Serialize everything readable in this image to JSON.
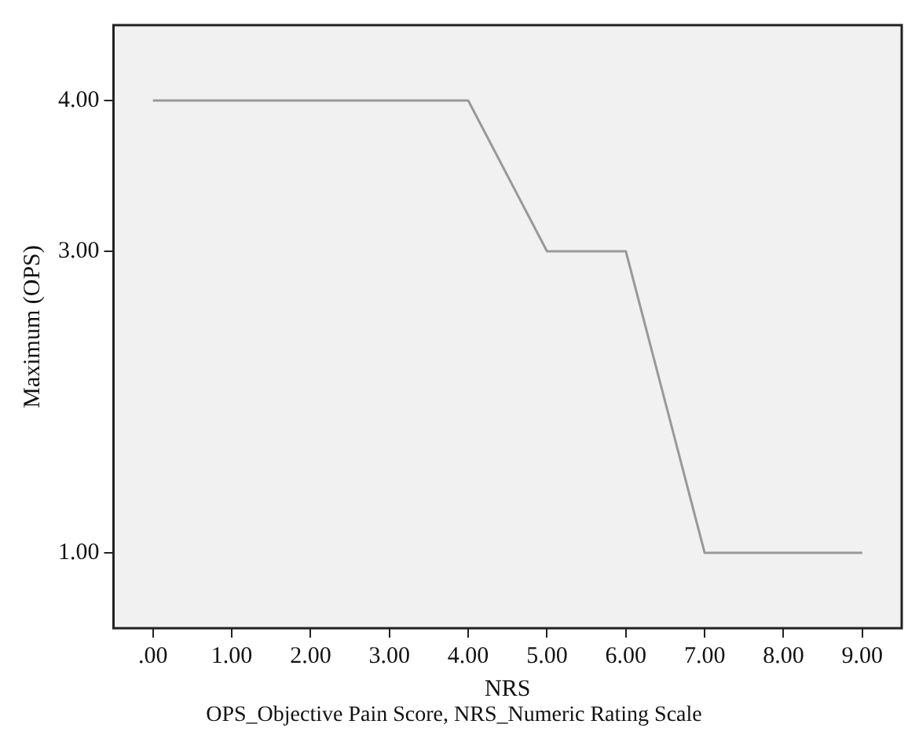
{
  "chart_data": {
    "type": "line",
    "xlabel": "NRS",
    "ylabel": "Maximum (OPS)",
    "annotations": [
      "OPS_Objective Pain Score, NRS_Numeric Rating Scale"
    ],
    "x": [
      0,
      1,
      2,
      3,
      4,
      5,
      6,
      7,
      8,
      9
    ],
    "series": [
      {
        "color": "#999999",
        "values": [
          4,
          4,
          4,
          4,
          4,
          3,
          3,
          1,
          1,
          1
        ]
      }
    ],
    "xlim": [
      -0.5,
      9.5
    ],
    "xticks": [
      {
        "value": 0,
        "label": ".00"
      },
      {
        "value": 1,
        "label": "1.00"
      },
      {
        "value": 2,
        "label": "2.00"
      },
      {
        "value": 3,
        "label": "3.00"
      },
      {
        "value": 4,
        "label": "4.00"
      },
      {
        "value": 5,
        "label": "5.00"
      },
      {
        "value": 6,
        "label": "6.00"
      },
      {
        "value": 7,
        "label": "7.00"
      },
      {
        "value": 8,
        "label": "8.00"
      },
      {
        "value": 9,
        "label": "9.00"
      }
    ],
    "ylim": [
      0.5,
      4.5
    ],
    "yticks": [
      {
        "value": 1,
        "label": "1.00"
      },
      {
        "value": 3,
        "label": "3.00"
      },
      {
        "value": 4,
        "label": "4.00"
      }
    ],
    "grid": false,
    "legend": false,
    "marker": "none",
    "line_style": "solid"
  }
}
